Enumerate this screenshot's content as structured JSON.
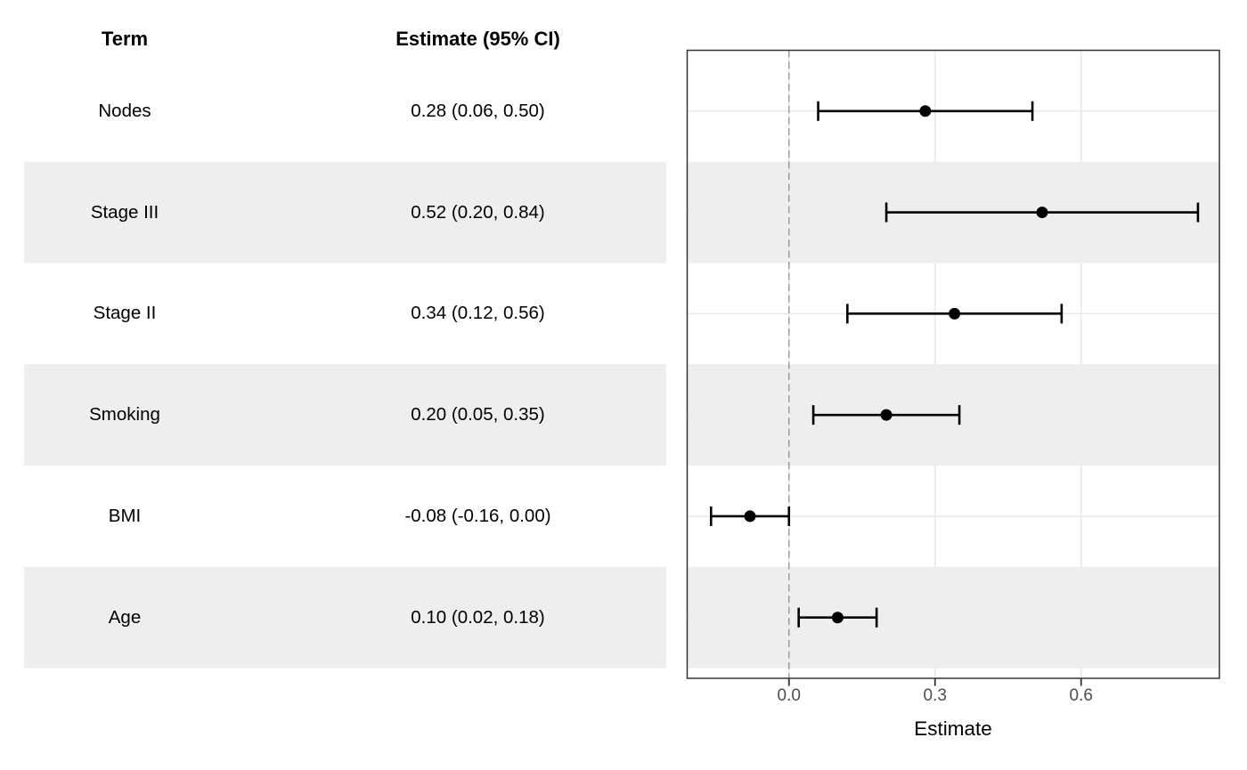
{
  "table": {
    "term_header": "Term",
    "estimate_header": "Estimate (95% CI)",
    "rows": [
      {
        "term": "Nodes",
        "estimate_label": "0.28 (0.06, 0.50)"
      },
      {
        "term": "Stage III",
        "estimate_label": "0.52 (0.20, 0.84)"
      },
      {
        "term": "Stage II",
        "estimate_label": "0.34 (0.12, 0.56)"
      },
      {
        "term": "Smoking",
        "estimate_label": "0.20 (0.05, 0.35)"
      },
      {
        "term": "BMI",
        "estimate_label": "-0.08 (-0.16, 0.00)"
      },
      {
        "term": "Age",
        "estimate_label": "0.10 (0.02, 0.18)"
      }
    ]
  },
  "chart_data": {
    "type": "scatter",
    "subtype": "forest-plot",
    "categories": [
      "Nodes",
      "Stage III",
      "Stage II",
      "Smoking",
      "BMI",
      "Age"
    ],
    "series": [
      {
        "name": "Estimate (95% CI)",
        "estimates": [
          0.28,
          0.52,
          0.34,
          0.2,
          -0.08,
          0.1
        ],
        "ci_lower": [
          0.06,
          0.2,
          0.12,
          0.05,
          -0.16,
          0.02
        ],
        "ci_upper": [
          0.5,
          0.84,
          0.56,
          0.35,
          0.0,
          0.18
        ]
      }
    ],
    "xlabel": "Estimate",
    "x_ticks": [
      0.0,
      0.3,
      0.6
    ],
    "x_tick_labels": [
      "0.0",
      "0.3",
      "0.6"
    ],
    "xlim": [
      -0.209,
      0.884
    ],
    "reference_line_x": 0.0,
    "grid": "major-only",
    "legend": "none",
    "striped_row_indices": [
      1,
      3,
      5
    ]
  },
  "colors": {
    "stripe": "#EEEEEE",
    "gridline": "#E6E6E6",
    "reference_line": "#9C9C9C",
    "panel_border": "#333333",
    "axis_tick": "#333333",
    "tick_label": "#4D4D4D",
    "estimate_point": "#000000",
    "error_bar": "#000000",
    "background": "#FFFFFF"
  }
}
